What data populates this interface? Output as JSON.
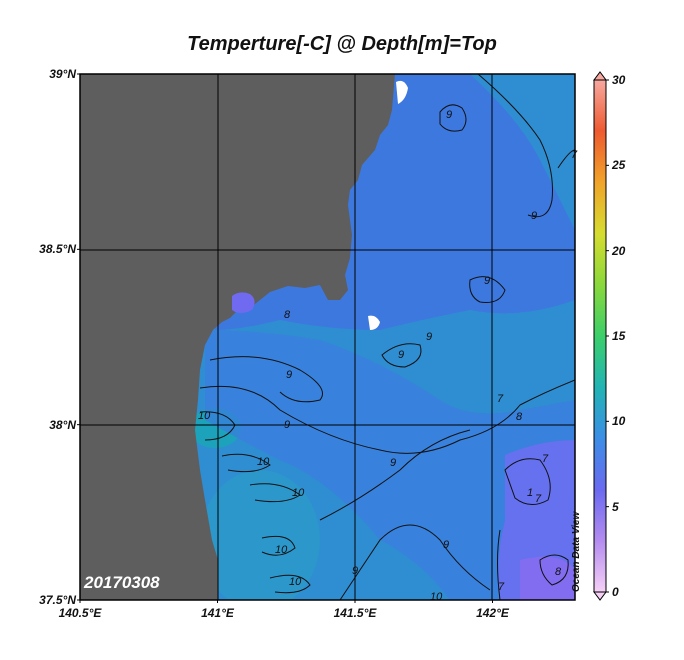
{
  "title": "Temperture[-C] @ Depth[m]=Top",
  "date_label": "20170308",
  "credit": "Ocean Data View",
  "map": {
    "lon_range": [
      140.5,
      142.3
    ],
    "lat_range": [
      37.5,
      39.0
    ],
    "lat_ticks": [
      {
        "value": 39.0,
        "label": "39°N"
      },
      {
        "value": 38.5,
        "label": "38.5°N"
      },
      {
        "value": 38.0,
        "label": "38°N"
      },
      {
        "value": 37.5,
        "label": "37.5°N"
      }
    ],
    "lon_ticks": [
      {
        "value": 140.5,
        "label": "140.5°E"
      },
      {
        "value": 141.0,
        "label": "141°E"
      },
      {
        "value": 141.5,
        "label": "141.5°E"
      },
      {
        "value": 142.0,
        "label": "142°E"
      }
    ],
    "land_color": "#5e5e5e",
    "ocean_color": "#2f8ed2"
  },
  "colorbar": {
    "min": 0,
    "max": 30,
    "ticks": [
      "30",
      "25",
      "20",
      "15",
      "10",
      "5",
      "0"
    ]
  },
  "contour_labels": [
    "9",
    "9",
    "8",
    "9",
    "9",
    "9",
    "8",
    "9",
    "7",
    "7",
    "9",
    "10",
    "10",
    "10",
    "10",
    "10",
    "9",
    "9",
    "9",
    "10",
    "1",
    "7",
    "8",
    "7",
    "7"
  ],
  "colors": {
    "cold": "#7a66f0",
    "mid": "#3b7fe0",
    "warm": "#1aa6b8"
  }
}
